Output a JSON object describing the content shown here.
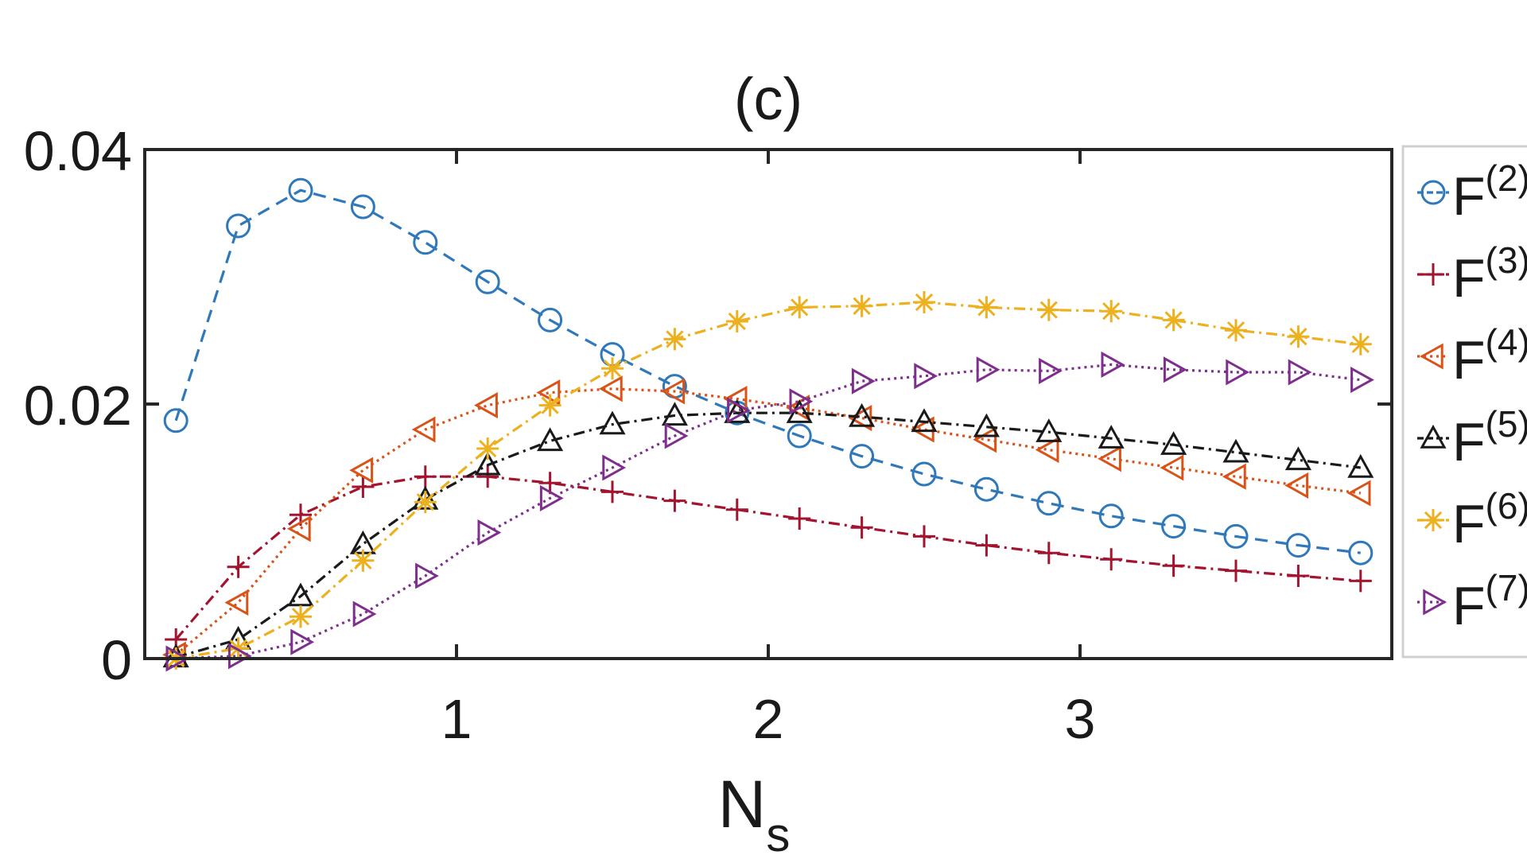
{
  "chart_data": {
    "type": "line",
    "title": "(c)",
    "xlabel": {
      "main": "N",
      "sub": "s"
    },
    "ylabel": "",
    "xlim": [
      0,
      4
    ],
    "ylim": [
      0,
      0.04
    ],
    "x_ticks": [
      1,
      2,
      3
    ],
    "x_tick_labels": [
      "1",
      "2",
      "3"
    ],
    "y_ticks": [
      0,
      0.02,
      0.04
    ],
    "y_tick_labels": [
      "0",
      "0.02",
      "0.04"
    ],
    "grid": false,
    "legend_position": "right-outside",
    "x": [
      0.1,
      0.3,
      0.5,
      0.7,
      0.9,
      1.1,
      1.3,
      1.5,
      1.7,
      1.9,
      2.1,
      2.3,
      2.5,
      2.7,
      2.9,
      3.1,
      3.3,
      3.5,
      3.7,
      3.9
    ],
    "series": [
      {
        "name": "F",
        "sup": "(2)",
        "color": "#2f78b9",
        "marker": "circle",
        "dash": "16 10",
        "values": [
          0.0187,
          0.034,
          0.0368,
          0.0355,
          0.0327,
          0.0296,
          0.0266,
          0.0239,
          0.0214,
          0.0193,
          0.0175,
          0.0159,
          0.0145,
          0.0133,
          0.0122,
          0.0112,
          0.0104,
          0.0096,
          0.0089,
          0.0083
        ]
      },
      {
        "name": "F",
        "sup": "(3)",
        "color": "#a2142f",
        "marker": "plus",
        "dash": "14 6 3 6",
        "values": [
          0.0015,
          0.0072,
          0.0113,
          0.0135,
          0.0143,
          0.0143,
          0.0138,
          0.0131,
          0.0124,
          0.0117,
          0.011,
          0.0103,
          0.0096,
          0.0089,
          0.0083,
          0.0078,
          0.0073,
          0.0069,
          0.0065,
          0.0061
        ]
      },
      {
        "name": "F",
        "sup": "(4)",
        "color": "#d95319",
        "marker": "triangle-left",
        "dash": "3 5",
        "values": [
          0.0003,
          0.0044,
          0.0102,
          0.0148,
          0.018,
          0.0199,
          0.0209,
          0.0212,
          0.021,
          0.0204,
          0.0197,
          0.0189,
          0.018,
          0.0172,
          0.0164,
          0.0157,
          0.015,
          0.0143,
          0.0136,
          0.013
        ]
      },
      {
        "name": "F",
        "sup": "(5)",
        "color": "#1a1a1a",
        "marker": "triangle-up",
        "dash": "14 6 3 6",
        "values": [
          0.0001,
          0.0015,
          0.0049,
          0.009,
          0.0125,
          0.0152,
          0.0171,
          0.0184,
          0.0191,
          0.0193,
          0.0193,
          0.019,
          0.0186,
          0.0182,
          0.0178,
          0.0173,
          0.0168,
          0.0162,
          0.0156,
          0.015
        ]
      },
      {
        "name": "F",
        "sup": "(6)",
        "color": "#edb120",
        "marker": "asterisk",
        "dash": "14 6 3 6",
        "values": [
          0.0,
          0.0008,
          0.0033,
          0.0077,
          0.0123,
          0.0165,
          0.0199,
          0.0228,
          0.0251,
          0.0265,
          0.0276,
          0.0277,
          0.028,
          0.0276,
          0.0274,
          0.0273,
          0.0266,
          0.0258,
          0.0253,
          0.0247
        ]
      },
      {
        "name": "F",
        "sup": "(7)",
        "color": "#7e2f8e",
        "marker": "triangle-right",
        "dash": "3 5",
        "values": [
          0.0,
          0.0002,
          0.0013,
          0.0035,
          0.0065,
          0.0099,
          0.0126,
          0.015,
          0.0175,
          0.0195,
          0.0202,
          0.0218,
          0.0222,
          0.0227,
          0.0226,
          0.0231,
          0.0227,
          0.0225,
          0.0225,
          0.0219
        ]
      }
    ]
  }
}
